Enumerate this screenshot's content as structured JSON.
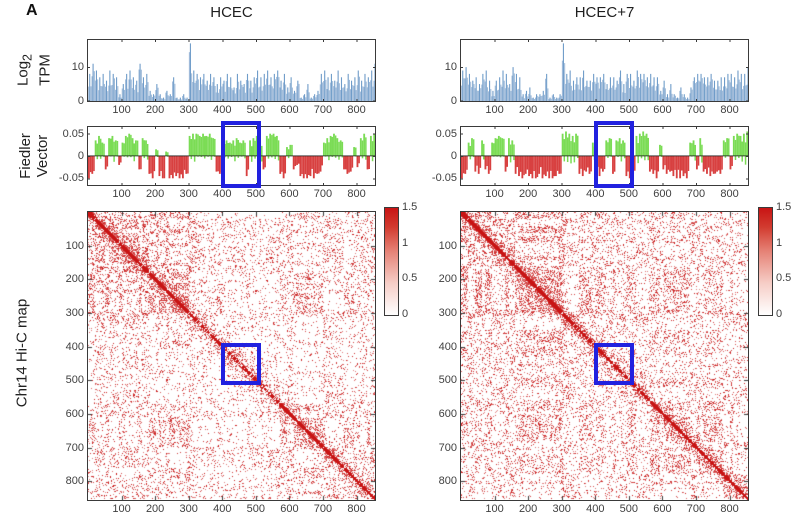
{
  "panel_label": "A",
  "row_labels": {
    "log_tpm_line1_main": "Log",
    "log_tpm_line1_sub": "2",
    "log_tpm_line2": "TPM",
    "fiedler_line1": "Fiedler",
    "fiedler_line2": "Vector",
    "hic": "Chr14 Hi-C map"
  },
  "axis": {
    "x_tick_values": [
      100,
      200,
      300,
      400,
      500,
      600,
      700,
      800
    ],
    "tpm_y_ticks": [
      10,
      0
    ],
    "fiedler_y_ticks": [
      "0.05",
      "0",
      "-0.05"
    ],
    "hic_y_ticks": [
      100,
      200,
      300,
      400,
      500,
      600,
      700,
      800
    ],
    "colorbar_ticks": [
      "1.5",
      "1",
      "0.5",
      "0"
    ]
  },
  "colors": {
    "bar_blue": "#6f9cc9",
    "bar_blue_light": "#a6c1de",
    "fiedler_green": "#7bdc55",
    "fiedler_red": "#d84040",
    "heat_red": "#c81414",
    "highlight_blue": "#2121df",
    "axis": "#3a3a3a"
  },
  "chart_data": [
    {
      "name": "HCEC",
      "type": "composite",
      "x_range": [
        0,
        855
      ],
      "bin_size": 10,
      "tracks": [
        {
          "type": "bar",
          "name": "log2_tpm",
          "ylabel": "Log2 TPM",
          "ylim": [
            0,
            18
          ],
          "yticks": [
            0,
            10
          ],
          "values": [
            8,
            11,
            9,
            7,
            8,
            6,
            9,
            8,
            7,
            2,
            5,
            8,
            9,
            7,
            6,
            11,
            7,
            8,
            3,
            2,
            5,
            2,
            1,
            3,
            2,
            7,
            1,
            1,
            2,
            1,
            17,
            9,
            8,
            7,
            8,
            6,
            8,
            7,
            5,
            7,
            6,
            8,
            7,
            4,
            8,
            6,
            5,
            8,
            6,
            7,
            9,
            7,
            8,
            9,
            7,
            8,
            9,
            6,
            8,
            4,
            7,
            3,
            6,
            1,
            2,
            5,
            1,
            2,
            3,
            8,
            9,
            7,
            8,
            6,
            9,
            7,
            5,
            8,
            6,
            7,
            9,
            6,
            8,
            7,
            9,
            11
          ]
        },
        {
          "type": "bar",
          "name": "fiedler_vector",
          "ylabel": "Fiedler Vector",
          "ylim": [
            -0.065,
            0.065
          ],
          "yticks": [
            -0.05,
            0,
            0.05
          ],
          "highlight_x": [
            395,
            515
          ],
          "values": [
            -0.05,
            -0.04,
            0.035,
            0.045,
            0.03,
            -0.03,
            0.04,
            0.045,
            0.035,
            -0.02,
            0.03,
            0.045,
            0.05,
            0.04,
            0.035,
            -0.03,
            0.04,
            0.035,
            -0.04,
            -0.05,
            0.015,
            -0.045,
            -0.05,
            0.01,
            -0.05,
            -0.05,
            -0.045,
            -0.05,
            -0.05,
            -0.04,
            0.045,
            0.05,
            0.05,
            0.045,
            0.05,
            0.045,
            0.05,
            0.04,
            -0.035,
            -0.04,
            0.03,
            0.035,
            0.03,
            0.035,
            0.04,
            0.03,
            0.035,
            -0.045,
            0.035,
            0.04,
            0.045,
            0.035,
            -0.03,
            0.045,
            0.05,
            0.05,
            0.045,
            -0.04,
            -0.05,
            0.02,
            0.025,
            -0.03,
            -0.02,
            -0.045,
            -0.05,
            -0.05,
            -0.045,
            -0.05,
            -0.04,
            -0.035,
            0.03,
            0.04,
            0.045,
            0.05,
            0.04,
            0.035,
            -0.03,
            -0.04,
            -0.035,
            0.02,
            -0.025,
            0.04,
            0.05,
            -0.03,
            0.045,
            0.05
          ]
        },
        {
          "type": "heatmap",
          "name": "chr14_hic_map",
          "ylabel": "Chr14 Hi-C map",
          "size": 855,
          "clim": [
            0,
            1.5
          ],
          "colorbar_ticks": [
            1.5,
            1,
            0.5,
            0
          ],
          "highlight_box": [
            395,
            515
          ],
          "density_regions": [
            {
              "range": [
                0,
                305
              ],
              "density": 0.62
            },
            {
              "range": [
                305,
                560
              ],
              "density": 0.3
            },
            {
              "range": [
                560,
                855
              ],
              "density": 0.5
            }
          ],
          "seed": 7
        }
      ]
    },
    {
      "name": "HCEC+7",
      "type": "composite",
      "x_range": [
        0,
        855
      ],
      "bin_size": 10,
      "tracks": [
        {
          "type": "bar",
          "name": "log2_tpm",
          "ylabel": "Log2 TPM",
          "ylim": [
            0,
            18
          ],
          "yticks": [
            0,
            10
          ],
          "values": [
            9,
            10,
            8,
            6,
            7,
            5,
            8,
            9,
            6,
            3,
            6,
            7,
            9,
            8,
            5,
            10,
            8,
            7,
            2,
            3,
            4,
            1,
            2,
            2,
            3,
            8,
            1,
            2,
            1,
            2,
            17,
            8,
            9,
            6,
            7,
            7,
            9,
            6,
            6,
            8,
            7,
            7,
            8,
            5,
            7,
            7,
            6,
            9,
            5,
            8,
            8,
            6,
            9,
            8,
            8,
            7,
            8,
            7,
            7,
            3,
            6,
            2,
            5,
            2,
            1,
            4,
            2,
            1,
            4,
            7,
            8,
            8,
            7,
            7,
            8,
            6,
            6,
            7,
            7,
            8,
            8,
            7,
            9,
            8,
            8,
            10
          ]
        },
        {
          "type": "bar",
          "name": "fiedler_vector",
          "ylabel": "Fiedler Vector",
          "ylim": [
            -0.065,
            0.065
          ],
          "yticks": [
            -0.05,
            0,
            0.05
          ],
          "highlight_x": [
            395,
            515
          ],
          "values": [
            -0.05,
            -0.04,
            0.03,
            0.04,
            -0.035,
            -0.04,
            0.035,
            -0.03,
            -0.04,
            0.03,
            0.04,
            0.045,
            0.04,
            -0.035,
            0.04,
            0.035,
            -0.04,
            -0.045,
            -0.05,
            -0.04,
            -0.045,
            -0.05,
            -0.05,
            -0.04,
            -0.05,
            -0.045,
            -0.05,
            -0.05,
            -0.045,
            -0.04,
            0.05,
            0.055,
            0.05,
            0.045,
            0.05,
            -0.04,
            -0.045,
            -0.035,
            -0.04,
            0.03,
            -0.04,
            -0.045,
            -0.035,
            0.035,
            0.04,
            -0.04,
            0.035,
            0.04,
            0.035,
            -0.045,
            -0.05,
            -0.04,
            0.045,
            0.05,
            0.055,
            0.05,
            -0.035,
            -0.04,
            -0.05,
            0.025,
            -0.03,
            -0.04,
            -0.035,
            -0.045,
            -0.05,
            -0.05,
            -0.045,
            -0.05,
            0.03,
            0.035,
            -0.03,
            0.04,
            -0.035,
            -0.04,
            -0.045,
            -0.04,
            -0.035,
            -0.04,
            0.035,
            0.04,
            -0.03,
            0.045,
            0.05,
            0.045,
            0.05,
            0.055
          ]
        },
        {
          "type": "heatmap",
          "name": "chr14_hic_map",
          "ylabel": "Chr14 Hi-C map",
          "size": 855,
          "clim": [
            0,
            1.5
          ],
          "colorbar_ticks": [
            1.5,
            1,
            0.5,
            0
          ],
          "highlight_box": [
            395,
            515
          ],
          "density_regions": [
            {
              "range": [
                0,
                305
              ],
              "density": 0.6
            },
            {
              "range": [
                305,
                560
              ],
              "density": 0.46
            },
            {
              "range": [
                560,
                855
              ],
              "density": 0.52
            }
          ],
          "seed": 17
        }
      ]
    }
  ]
}
